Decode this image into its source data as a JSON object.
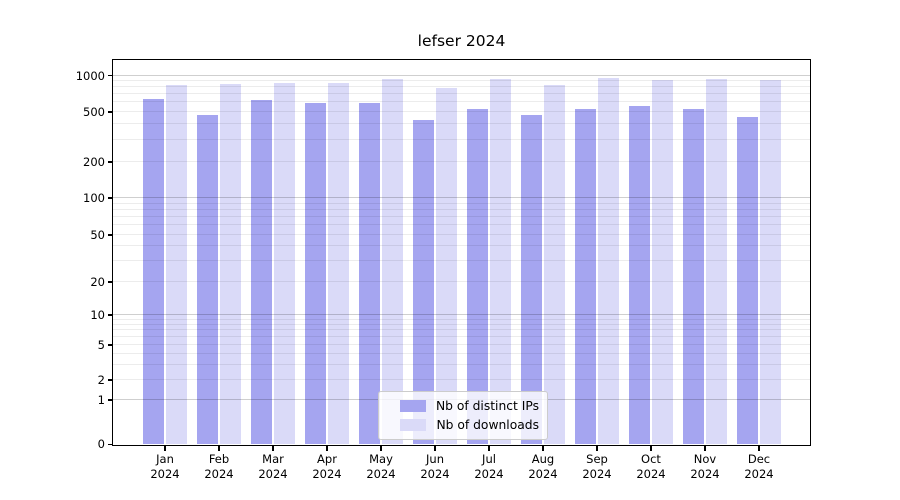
{
  "chart_data": {
    "type": "bar",
    "title": "lefser 2024",
    "year_label": "2024",
    "categories": [
      "Jan",
      "Feb",
      "Mar",
      "Apr",
      "May",
      "Jun",
      "Jul",
      "Aug",
      "Sep",
      "Oct",
      "Nov",
      "Dec"
    ],
    "series": [
      {
        "name": "Nb of distinct IPs",
        "color": "#a5a5f0",
        "values": [
          630,
          470,
          625,
          590,
          590,
          430,
          520,
          465,
          520,
          560,
          520,
          455
        ]
      },
      {
        "name": "Nb of downloads",
        "color": "#dadaf8",
        "values": [
          825,
          850,
          860,
          860,
          920,
          785,
          920,
          820,
          950,
          905,
          935,
          910
        ]
      }
    ],
    "yticks": [
      0,
      1,
      2,
      5,
      10,
      20,
      50,
      100,
      200,
      500,
      1000
    ],
    "ylim": [
      0,
      1000
    ],
    "yscale": "symlog",
    "xlabel": "",
    "ylabel": "",
    "grid": true,
    "legend_position": "bottom-center",
    "colors": {
      "axis": "#000000",
      "grid_minor": "#ebebeb",
      "grid_major": "#cfcfcf",
      "background": "#ffffff"
    }
  }
}
